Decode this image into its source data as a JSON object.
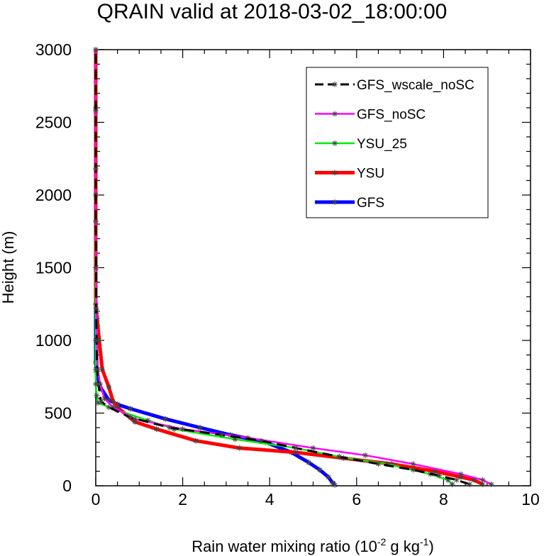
{
  "chart_data": {
    "type": "line",
    "title": "QRAIN valid at 2018-03-02_18:00:00",
    "xlabel_main": "Rain water mixing ratio (10",
    "xlabel_exp1": "-2",
    "xlabel_mid": " g kg",
    "xlabel_exp2": "-1",
    "xlabel_end": ")",
    "ylabel": "Height (m)",
    "xlim": [
      0,
      10
    ],
    "ylim": [
      0,
      3000
    ],
    "xticks": [
      "0",
      "2",
      "4",
      "6",
      "8",
      "10"
    ],
    "yticks": [
      "0",
      "500",
      "1000",
      "1500",
      "2000",
      "2500",
      "3000"
    ],
    "grid": false,
    "legend_placement": "top-right",
    "series": [
      {
        "name": "GFS_wscale_noSC",
        "color": "#000000",
        "dashed": true,
        "markers": true,
        "points": [
          [
            8.6,
            10
          ],
          [
            8.3,
            40
          ],
          [
            7.9,
            70
          ],
          [
            7.3,
            110
          ],
          [
            6.5,
            150
          ],
          [
            5.6,
            200
          ],
          [
            4.6,
            260
          ],
          [
            3.8,
            310
          ],
          [
            2.9,
            350
          ],
          [
            1.7,
            400
          ],
          [
            0.8,
            470
          ],
          [
            0.3,
            540
          ],
          [
            0.12,
            580
          ],
          [
            0.06,
            700
          ],
          [
            0.03,
            800
          ],
          [
            0.02,
            1000
          ],
          [
            0.01,
            1220
          ],
          [
            0.01,
            1500
          ],
          [
            0.0,
            1820
          ],
          [
            0.0,
            2180
          ],
          [
            0.0,
            2580
          ],
          [
            0.0,
            3000
          ]
        ]
      },
      {
        "name": "GFS_noSC",
        "color": "#ff00ff",
        "dashed": false,
        "markers": true,
        "points": [
          [
            9.1,
            10
          ],
          [
            8.9,
            40
          ],
          [
            8.4,
            80
          ],
          [
            7.3,
            150
          ],
          [
            6.2,
            210
          ],
          [
            5.0,
            260
          ],
          [
            3.5,
            330
          ],
          [
            2.0,
            390
          ],
          [
            0.9,
            460
          ],
          [
            0.4,
            540
          ],
          [
            0.2,
            600
          ],
          [
            0.1,
            700
          ],
          [
            0.05,
            800
          ],
          [
            0.03,
            1000
          ],
          [
            0.02,
            1200
          ],
          [
            0.01,
            1500
          ],
          [
            0.0,
            2000
          ],
          [
            0.0,
            2600
          ],
          [
            0.0,
            3000
          ]
        ]
      },
      {
        "name": "YSU_25",
        "color": "#00ee00",
        "dashed": false,
        "markers": true,
        "points": [
          [
            8.2,
            10
          ],
          [
            8.1,
            40
          ],
          [
            7.7,
            80
          ],
          [
            6.7,
            150
          ],
          [
            5.6,
            200
          ],
          [
            4.6,
            260
          ],
          [
            3.2,
            320
          ],
          [
            1.8,
            390
          ],
          [
            1.2,
            450
          ],
          [
            0.5,
            520
          ],
          [
            0.05,
            570
          ],
          [
            0.02,
            620
          ],
          [
            0.0,
            700
          ],
          [
            0.0,
            800
          ],
          [
            0.0,
            1000
          ],
          [
            0.0,
            2000
          ],
          [
            0.0,
            3000
          ]
        ]
      },
      {
        "name": "YSU",
        "color": "#ff0000",
        "dashed": false,
        "markers": true,
        "points": [
          [
            8.9,
            10
          ],
          [
            8.7,
            40
          ],
          [
            8.4,
            60
          ],
          [
            7.8,
            100
          ],
          [
            6.8,
            150
          ],
          [
            5.7,
            190
          ],
          [
            4.6,
            230
          ],
          [
            3.3,
            260
          ],
          [
            2.3,
            310
          ],
          [
            1.4,
            390
          ],
          [
            0.9,
            440
          ],
          [
            0.5,
            540
          ],
          [
            0.4,
            580
          ],
          [
            0.3,
            680
          ],
          [
            0.15,
            800
          ],
          [
            0.08,
            1000
          ],
          [
            0.03,
            1150
          ],
          [
            0.0,
            1250
          ],
          [
            0.0,
            1500
          ],
          [
            0.0,
            2000
          ],
          [
            0.0,
            3000
          ]
        ]
      },
      {
        "name": "GFS",
        "color": "#0000ff",
        "dashed": false,
        "markers": true,
        "points": [
          [
            5.5,
            5
          ],
          [
            5.45,
            20
          ],
          [
            5.35,
            60
          ],
          [
            5.15,
            110
          ],
          [
            4.9,
            160
          ],
          [
            4.5,
            230
          ],
          [
            3.9,
            300
          ],
          [
            3.1,
            350
          ],
          [
            2.4,
            400
          ],
          [
            1.6,
            460
          ],
          [
            0.8,
            530
          ],
          [
            0.5,
            560
          ],
          [
            0.3,
            590
          ],
          [
            0.1,
            680
          ],
          [
            0.02,
            780
          ],
          [
            0.0,
            850
          ],
          [
            0.0,
            1000
          ],
          [
            0.0,
            2000
          ],
          [
            0.0,
            3000
          ]
        ]
      }
    ]
  }
}
